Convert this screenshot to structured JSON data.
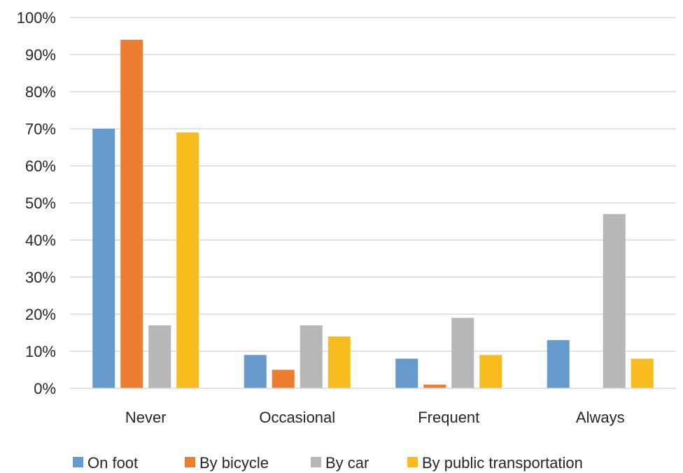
{
  "chart_data": {
    "type": "bar",
    "title": "",
    "xlabel": "",
    "ylabel": "",
    "categories": [
      "Never",
      "Occasional",
      "Frequent",
      "Always"
    ],
    "series": [
      {
        "name": "On foot",
        "color": "#6699cc",
        "values": [
          70,
          9,
          8,
          13
        ]
      },
      {
        "name": "By bicycle",
        "color": "#ed7d31",
        "values": [
          94,
          5,
          1,
          0
        ]
      },
      {
        "name": "By car",
        "color": "#b7b7b7",
        "values": [
          17,
          17,
          19,
          47
        ]
      },
      {
        "name": "By public transportation",
        "color": "#f9bc1f",
        "values": [
          69,
          14,
          9,
          8
        ]
      }
    ],
    "ylim": [
      0,
      100
    ],
    "yticks": [
      "0%",
      "10%",
      "20%",
      "30%",
      "40%",
      "50%",
      "60%",
      "70%",
      "80%",
      "90%",
      "100%"
    ],
    "grid": true,
    "legend_position": "bottom"
  }
}
